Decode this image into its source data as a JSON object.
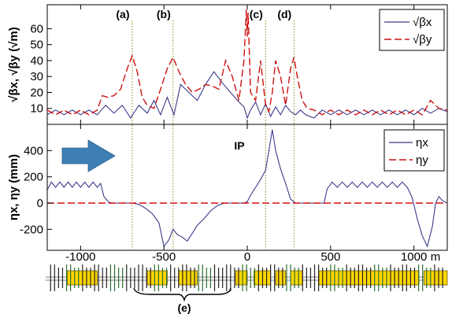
{
  "chart_data": [
    {
      "type": "line",
      "panel": "beta",
      "ylabel": "√βx, √βy (√m)",
      "yticks": [
        10,
        20,
        30,
        40,
        50,
        60
      ],
      "ylim": [
        0,
        75
      ],
      "xlim": [
        -1200,
        1200
      ],
      "grid": false,
      "legend_position": "top-right",
      "markers": [
        {
          "label": "(a)",
          "x": -690
        },
        {
          "label": "(b)",
          "x": -445
        },
        {
          "label": "(c)",
          "x": 110
        },
        {
          "label": "(d)",
          "x": 280
        }
      ],
      "series": [
        {
          "name": "√βx",
          "color": "#3a3a8c",
          "style": "solid",
          "x": [
            -1200,
            -1150,
            -1100,
            -1050,
            -1000,
            -950,
            -900,
            -850,
            -800,
            -750,
            -700,
            -650,
            -600,
            -560,
            -520,
            -480,
            -440,
            -400,
            -350,
            -300,
            -250,
            -200,
            -150,
            -100,
            -50,
            -20,
            0,
            20,
            50,
            80,
            110,
            140,
            170,
            200,
            230,
            260,
            290,
            320,
            350,
            400,
            450,
            500,
            550,
            600,
            650,
            700,
            750,
            800,
            850,
            900,
            950,
            1000,
            1050,
            1100,
            1150,
            1200
          ],
          "y": [
            6,
            9,
            6,
            9,
            6,
            9,
            6,
            12,
            7,
            12,
            4,
            12,
            7,
            15,
            6,
            17,
            6,
            25,
            20,
            15,
            25,
            33,
            26,
            20,
            14,
            11,
            4,
            9,
            14,
            6,
            13,
            5,
            11,
            6,
            12,
            8,
            6,
            9,
            6,
            4,
            9,
            6,
            9,
            6,
            9,
            6,
            9,
            6,
            9,
            6,
            9,
            6,
            10,
            7,
            10,
            8
          ]
        },
        {
          "name": "√βy",
          "color": "#cc1111",
          "style": "dashed",
          "x": [
            -1200,
            -1150,
            -1100,
            -1050,
            -1000,
            -950,
            -900,
            -870,
            -840,
            -800,
            -760,
            -720,
            -690,
            -660,
            -630,
            -600,
            -560,
            -520,
            -480,
            -445,
            -410,
            -370,
            -330,
            -290,
            -250,
            -210,
            -170,
            -130,
            -90,
            -50,
            -20,
            -5,
            0,
            5,
            20,
            50,
            80,
            110,
            130,
            150,
            170,
            200,
            230,
            260,
            280,
            300,
            330,
            360,
            400,
            450,
            500,
            550,
            600,
            650,
            700,
            750,
            800,
            850,
            900,
            950,
            1000,
            1050,
            1100,
            1150,
            1200
          ],
          "y": [
            9,
            6,
            9,
            6,
            9,
            6,
            9,
            18,
            17,
            18,
            22,
            35,
            43,
            33,
            17,
            12,
            10,
            22,
            35,
            42,
            33,
            25,
            20,
            22,
            25,
            24,
            22,
            40,
            30,
            15,
            40,
            72,
            55,
            70,
            20,
            15,
            40,
            12,
            8,
            20,
            40,
            30,
            12,
            35,
            42,
            30,
            15,
            10,
            9,
            6,
            9,
            6,
            9,
            6,
            9,
            6,
            9,
            6,
            9,
            6,
            9,
            6,
            15,
            10,
            9
          ]
        }
      ]
    },
    {
      "type": "line",
      "panel": "eta",
      "ylabel": "ηx, ηy (mm)",
      "xlabel_unit": "m",
      "yticks": [
        -200,
        0,
        200,
        400
      ],
      "ylim": [
        -360,
        600
      ],
      "xticks": [
        -1000,
        -500,
        0,
        500,
        1000
      ],
      "xlim": [
        -1200,
        1200
      ],
      "grid": false,
      "legend_position": "top-right",
      "annotation": "IP",
      "series": [
        {
          "name": "ηx",
          "color": "#3a3a8c",
          "style": "solid",
          "x": [
            -1200,
            -1175,
            -1150,
            -1125,
            -1100,
            -1075,
            -1050,
            -1025,
            -1000,
            -975,
            -950,
            -925,
            -900,
            -880,
            -860,
            -830,
            -800,
            -760,
            -720,
            -690,
            -650,
            -610,
            -570,
            -530,
            -500,
            -470,
            -445,
            -420,
            -390,
            -360,
            -330,
            -300,
            -260,
            -220,
            -180,
            -140,
            -100,
            -60,
            -20,
            0,
            20,
            50,
            80,
            110,
            130,
            150,
            170,
            200,
            230,
            260,
            290,
            320,
            350,
            380,
            410,
            440,
            460,
            480,
            510,
            540,
            570,
            600,
            630,
            660,
            690,
            720,
            750,
            780,
            810,
            840,
            870,
            900,
            930,
            960,
            990,
            1020,
            1050,
            1080,
            1110,
            1130,
            1150,
            1170,
            1200
          ],
          "y": [
            100,
            160,
            120,
            160,
            120,
            160,
            120,
            160,
            120,
            160,
            120,
            160,
            120,
            150,
            50,
            5,
            0,
            0,
            0,
            0,
            -10,
            -40,
            -80,
            -150,
            -330,
            -280,
            -200,
            -240,
            -260,
            -290,
            -230,
            -170,
            -120,
            -60,
            -20,
            0,
            0,
            0,
            0,
            10,
            60,
            120,
            180,
            250,
            400,
            560,
            400,
            260,
            150,
            30,
            0,
            0,
            0,
            0,
            0,
            0,
            0,
            110,
            160,
            120,
            160,
            120,
            160,
            120,
            160,
            120,
            160,
            120,
            160,
            120,
            160,
            120,
            160,
            120,
            40,
            -120,
            -250,
            -330,
            -180,
            0,
            50,
            20,
            0
          ]
        },
        {
          "name": "ηy",
          "color": "#cc1111",
          "style": "dashed",
          "x": [
            -1200,
            1200
          ],
          "y": [
            0,
            0
          ]
        }
      ]
    }
  ],
  "bracket_label": "(e)"
}
